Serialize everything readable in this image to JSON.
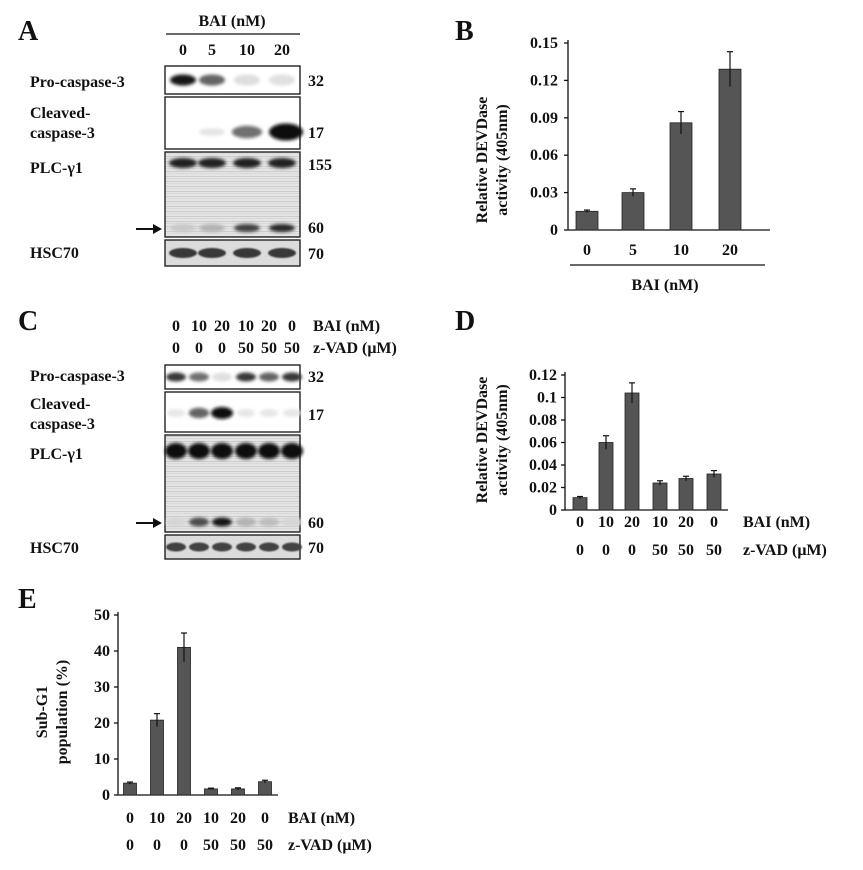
{
  "panels": {
    "A": {
      "letter": "A",
      "treatment_header": "BAI (nM)",
      "lanes": [
        "0",
        "5",
        "10",
        "20"
      ],
      "blots": [
        {
          "label": "Pro-caspase-3",
          "marker": "32",
          "bands": [
            0.95,
            0.6,
            0.06,
            0.05
          ]
        },
        {
          "label_lines": [
            "Cleaved-",
            "caspase-3"
          ],
          "marker": "17",
          "bands": [
            0.0,
            0.03,
            0.55,
            1.0
          ]
        },
        {
          "label": "PLC-γ1",
          "marker_top": "155",
          "marker_bottom": "60",
          "top_bands": [
            0.9,
            0.9,
            0.9,
            0.9
          ],
          "bottom_bands": [
            0.15,
            0.25,
            0.75,
            0.85
          ]
        },
        {
          "label": "HSC70",
          "marker": "70",
          "bands": [
            0.8,
            0.8,
            0.8,
            0.8
          ]
        }
      ]
    },
    "B": {
      "letter": "B",
      "chart_data": {
        "type": "bar",
        "categories": [
          "0",
          "5",
          "10",
          "20"
        ],
        "values": [
          0.015,
          0.03,
          0.086,
          0.129
        ],
        "errors": [
          0.001,
          0.003,
          0.009,
          0.014
        ],
        "ylabel_lines": [
          "Relative DEVDase",
          "activity (405nm)"
        ],
        "yticks": [
          "0",
          "0.03",
          "0.06",
          "0.09",
          "0.12",
          "0.15"
        ],
        "ylim": [
          0,
          0.15
        ],
        "xlabel": "BAI (nM)"
      }
    },
    "C": {
      "letter": "C",
      "row1_header": "BAI (nM)",
      "row2_header": "z-VAD (μM)",
      "row1": [
        "0",
        "10",
        "20",
        "10",
        "20",
        "0"
      ],
      "row2": [
        "0",
        "0",
        "0",
        "50",
        "50",
        "50"
      ],
      "blots": [
        {
          "label": "Pro-caspase-3",
          "marker": "32",
          "bands": [
            0.8,
            0.55,
            0.05,
            0.8,
            0.6,
            0.8
          ]
        },
        {
          "label_lines": [
            "Cleaved-",
            "caspase-3"
          ],
          "marker": "17",
          "bands": [
            0.02,
            0.6,
            1.0,
            0.02,
            0.02,
            0.02
          ]
        },
        {
          "label": "PLC-γ1",
          "marker_bottom": "60",
          "top_bands": [
            1.0,
            1.0,
            1.0,
            1.0,
            1.0,
            1.0
          ],
          "bottom_bands": [
            0.1,
            0.7,
            0.95,
            0.25,
            0.2,
            0.1
          ]
        },
        {
          "label": "HSC70",
          "marker": "70",
          "bands": [
            0.75,
            0.75,
            0.75,
            0.75,
            0.75,
            0.75
          ]
        }
      ]
    },
    "D": {
      "letter": "D",
      "chart_data": {
        "type": "bar",
        "categories": [
          "0|0",
          "10|0",
          "20|0",
          "10|50",
          "20|50",
          "0|50"
        ],
        "values": [
          0.011,
          0.06,
          0.104,
          0.024,
          0.028,
          0.032
        ],
        "errors": [
          0.001,
          0.006,
          0.009,
          0.002,
          0.002,
          0.003
        ],
        "ylabel_lines": [
          "Relative DEVDase",
          "activity (405nm)"
        ],
        "yticks": [
          "0",
          "0.02",
          "0.04",
          "0.06",
          "0.08",
          "0.1",
          "0.12"
        ],
        "ylim": [
          0,
          0.12
        ],
        "row1": [
          "0",
          "10",
          "20",
          "10",
          "20",
          "0"
        ],
        "row2": [
          "0",
          "0",
          "0",
          "50",
          "50",
          "50"
        ],
        "row1_header": "BAI (nM)",
        "row2_header": "z-VAD (μM)"
      }
    },
    "E": {
      "letter": "E",
      "chart_data": {
        "type": "bar",
        "categories": [
          "0|0",
          "10|0",
          "20|0",
          "10|50",
          "20|50",
          "0|50"
        ],
        "values": [
          3.3,
          20.8,
          41.0,
          1.7,
          1.7,
          3.7
        ],
        "errors": [
          0.3,
          1.8,
          4.0,
          0.2,
          0.3,
          0.4
        ],
        "ylabel_lines": [
          "Sub-G1",
          "population (%)"
        ],
        "yticks": [
          "0",
          "10",
          "20",
          "30",
          "40",
          "50"
        ],
        "ylim": [
          0,
          50
        ],
        "row1": [
          "0",
          "10",
          "20",
          "10",
          "20",
          "0"
        ],
        "row2": [
          "0",
          "0",
          "0",
          "50",
          "50",
          "50"
        ],
        "row1_header": "BAI (nM)",
        "row2_header": "z-VAD (μM)"
      }
    }
  }
}
